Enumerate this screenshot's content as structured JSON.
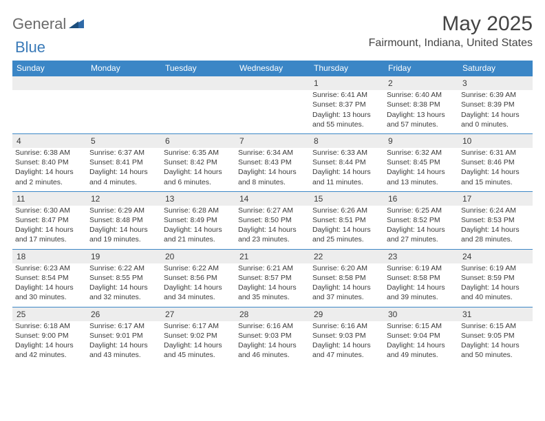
{
  "brand": {
    "word1": "General",
    "word2": "Blue",
    "shape_color": "#2f6aa8"
  },
  "title": "May 2025",
  "location": "Fairmount, Indiana, United States",
  "colors": {
    "header_bg": "#3b86c6",
    "header_text": "#ffffff",
    "daynum_bg": "#ededed",
    "row_divider": "#3b86c6",
    "body_text": "#3a3a3a",
    "background": "#ffffff"
  },
  "typography": {
    "title_fontsize": 30,
    "location_fontsize": 16,
    "header_fontsize": 12,
    "daynum_fontsize": 12,
    "cell_fontsize": 10.5
  },
  "day_headers": [
    "Sunday",
    "Monday",
    "Tuesday",
    "Wednesday",
    "Thursday",
    "Friday",
    "Saturday"
  ],
  "weeks": [
    {
      "nums": [
        "",
        "",
        "",
        "",
        "1",
        "2",
        "3"
      ],
      "cells": [
        null,
        null,
        null,
        null,
        {
          "sr": "Sunrise: 6:41 AM",
          "ss": "Sunset: 8:37 PM",
          "d1": "Daylight: 13 hours",
          "d2": "and 55 minutes."
        },
        {
          "sr": "Sunrise: 6:40 AM",
          "ss": "Sunset: 8:38 PM",
          "d1": "Daylight: 13 hours",
          "d2": "and 57 minutes."
        },
        {
          "sr": "Sunrise: 6:39 AM",
          "ss": "Sunset: 8:39 PM",
          "d1": "Daylight: 14 hours",
          "d2": "and 0 minutes."
        }
      ]
    },
    {
      "nums": [
        "4",
        "5",
        "6",
        "7",
        "8",
        "9",
        "10"
      ],
      "cells": [
        {
          "sr": "Sunrise: 6:38 AM",
          "ss": "Sunset: 8:40 PM",
          "d1": "Daylight: 14 hours",
          "d2": "and 2 minutes."
        },
        {
          "sr": "Sunrise: 6:37 AM",
          "ss": "Sunset: 8:41 PM",
          "d1": "Daylight: 14 hours",
          "d2": "and 4 minutes."
        },
        {
          "sr": "Sunrise: 6:35 AM",
          "ss": "Sunset: 8:42 PM",
          "d1": "Daylight: 14 hours",
          "d2": "and 6 minutes."
        },
        {
          "sr": "Sunrise: 6:34 AM",
          "ss": "Sunset: 8:43 PM",
          "d1": "Daylight: 14 hours",
          "d2": "and 8 minutes."
        },
        {
          "sr": "Sunrise: 6:33 AM",
          "ss": "Sunset: 8:44 PM",
          "d1": "Daylight: 14 hours",
          "d2": "and 11 minutes."
        },
        {
          "sr": "Sunrise: 6:32 AM",
          "ss": "Sunset: 8:45 PM",
          "d1": "Daylight: 14 hours",
          "d2": "and 13 minutes."
        },
        {
          "sr": "Sunrise: 6:31 AM",
          "ss": "Sunset: 8:46 PM",
          "d1": "Daylight: 14 hours",
          "d2": "and 15 minutes."
        }
      ]
    },
    {
      "nums": [
        "11",
        "12",
        "13",
        "14",
        "15",
        "16",
        "17"
      ],
      "cells": [
        {
          "sr": "Sunrise: 6:30 AM",
          "ss": "Sunset: 8:47 PM",
          "d1": "Daylight: 14 hours",
          "d2": "and 17 minutes."
        },
        {
          "sr": "Sunrise: 6:29 AM",
          "ss": "Sunset: 8:48 PM",
          "d1": "Daylight: 14 hours",
          "d2": "and 19 minutes."
        },
        {
          "sr": "Sunrise: 6:28 AM",
          "ss": "Sunset: 8:49 PM",
          "d1": "Daylight: 14 hours",
          "d2": "and 21 minutes."
        },
        {
          "sr": "Sunrise: 6:27 AM",
          "ss": "Sunset: 8:50 PM",
          "d1": "Daylight: 14 hours",
          "d2": "and 23 minutes."
        },
        {
          "sr": "Sunrise: 6:26 AM",
          "ss": "Sunset: 8:51 PM",
          "d1": "Daylight: 14 hours",
          "d2": "and 25 minutes."
        },
        {
          "sr": "Sunrise: 6:25 AM",
          "ss": "Sunset: 8:52 PM",
          "d1": "Daylight: 14 hours",
          "d2": "and 27 minutes."
        },
        {
          "sr": "Sunrise: 6:24 AM",
          "ss": "Sunset: 8:53 PM",
          "d1": "Daylight: 14 hours",
          "d2": "and 28 minutes."
        }
      ]
    },
    {
      "nums": [
        "18",
        "19",
        "20",
        "21",
        "22",
        "23",
        "24"
      ],
      "cells": [
        {
          "sr": "Sunrise: 6:23 AM",
          "ss": "Sunset: 8:54 PM",
          "d1": "Daylight: 14 hours",
          "d2": "and 30 minutes."
        },
        {
          "sr": "Sunrise: 6:22 AM",
          "ss": "Sunset: 8:55 PM",
          "d1": "Daylight: 14 hours",
          "d2": "and 32 minutes."
        },
        {
          "sr": "Sunrise: 6:22 AM",
          "ss": "Sunset: 8:56 PM",
          "d1": "Daylight: 14 hours",
          "d2": "and 34 minutes."
        },
        {
          "sr": "Sunrise: 6:21 AM",
          "ss": "Sunset: 8:57 PM",
          "d1": "Daylight: 14 hours",
          "d2": "and 35 minutes."
        },
        {
          "sr": "Sunrise: 6:20 AM",
          "ss": "Sunset: 8:58 PM",
          "d1": "Daylight: 14 hours",
          "d2": "and 37 minutes."
        },
        {
          "sr": "Sunrise: 6:19 AM",
          "ss": "Sunset: 8:58 PM",
          "d1": "Daylight: 14 hours",
          "d2": "and 39 minutes."
        },
        {
          "sr": "Sunrise: 6:19 AM",
          "ss": "Sunset: 8:59 PM",
          "d1": "Daylight: 14 hours",
          "d2": "and 40 minutes."
        }
      ]
    },
    {
      "nums": [
        "25",
        "26",
        "27",
        "28",
        "29",
        "30",
        "31"
      ],
      "cells": [
        {
          "sr": "Sunrise: 6:18 AM",
          "ss": "Sunset: 9:00 PM",
          "d1": "Daylight: 14 hours",
          "d2": "and 42 minutes."
        },
        {
          "sr": "Sunrise: 6:17 AM",
          "ss": "Sunset: 9:01 PM",
          "d1": "Daylight: 14 hours",
          "d2": "and 43 minutes."
        },
        {
          "sr": "Sunrise: 6:17 AM",
          "ss": "Sunset: 9:02 PM",
          "d1": "Daylight: 14 hours",
          "d2": "and 45 minutes."
        },
        {
          "sr": "Sunrise: 6:16 AM",
          "ss": "Sunset: 9:03 PM",
          "d1": "Daylight: 14 hours",
          "d2": "and 46 minutes."
        },
        {
          "sr": "Sunrise: 6:16 AM",
          "ss": "Sunset: 9:03 PM",
          "d1": "Daylight: 14 hours",
          "d2": "and 47 minutes."
        },
        {
          "sr": "Sunrise: 6:15 AM",
          "ss": "Sunset: 9:04 PM",
          "d1": "Daylight: 14 hours",
          "d2": "and 49 minutes."
        },
        {
          "sr": "Sunrise: 6:15 AM",
          "ss": "Sunset: 9:05 PM",
          "d1": "Daylight: 14 hours",
          "d2": "and 50 minutes."
        }
      ]
    }
  ]
}
